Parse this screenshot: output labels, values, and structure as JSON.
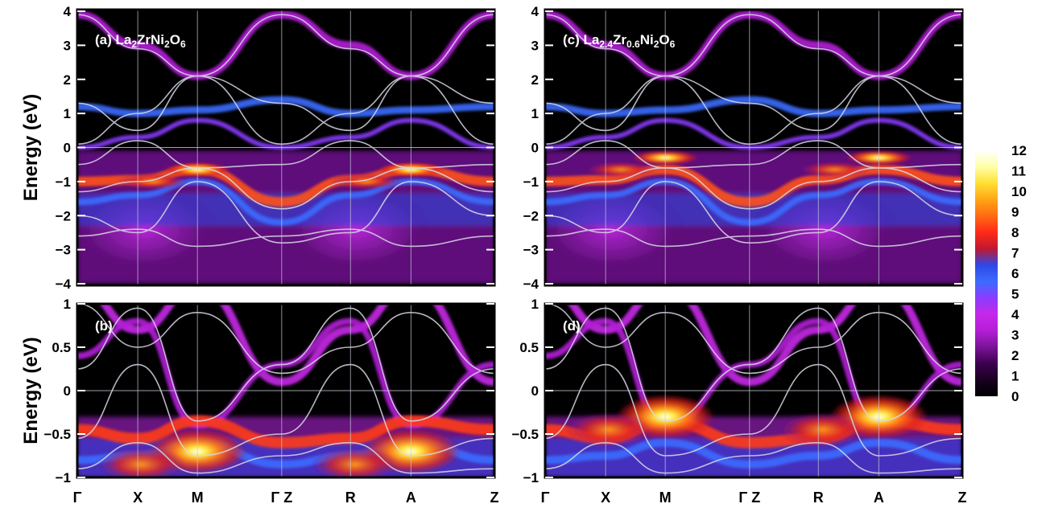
{
  "colors": {
    "background": "#ffffff",
    "axis": "#000000",
    "band_line": "#d8d8e6",
    "reference_line": "#c8c8d8",
    "panel_label": "#ffffff",
    "colormap": [
      "#000000",
      "#1a0020",
      "#3c0050",
      "#7a1497",
      "#b41ed8",
      "#c728e8",
      "#8a3cff",
      "#3c6bff",
      "#2d48e6",
      "#c01830",
      "#ff2a1a",
      "#ff6a12",
      "#ffa516",
      "#ffe034",
      "#ffffa8",
      "#ffffff"
    ]
  },
  "kpath": [
    "Γ",
    "X",
    "M",
    "Γ Z",
    "R",
    "A",
    "Z"
  ],
  "colorbar": {
    "ticks": [
      "0",
      "1",
      "2",
      "3",
      "4",
      "5",
      "6",
      "7",
      "8",
      "9",
      "10",
      "11",
      "12"
    ],
    "min": 0,
    "max": 12
  },
  "chart_data": [
    {
      "type": "heatmap",
      "panel": "a",
      "label_prefix": "(a) ",
      "label_parts": [
        [
          "La",
          ""
        ],
        [
          "2",
          "sub"
        ],
        [
          "ZrNi",
          ""
        ],
        [
          "2",
          "sub"
        ],
        [
          "O",
          ""
        ],
        [
          "6",
          "sub"
        ]
      ],
      "ylabel": "Energy (eV)",
      "ylim": [
        -4,
        4
      ],
      "yticks": [
        "4",
        "3",
        "2",
        "1",
        "0",
        "−1",
        "−2",
        "−3",
        "−4"
      ],
      "xticks": [
        "Γ",
        "X",
        "M",
        "Γ Z",
        "R",
        "A",
        "Z"
      ],
      "bright_features": [
        {
          "k": "M",
          "energy": -0.65,
          "intensity": 12
        },
        {
          "k": "A",
          "energy": -0.65,
          "intensity": 12
        },
        {
          "k": "between Γ and M",
          "energy": -1.0,
          "intensity": 8
        }
      ]
    },
    {
      "type": "heatmap",
      "panel": "b",
      "label_prefix": "(b)",
      "label_parts": [],
      "ylabel": "Energy (eV)",
      "ylim": [
        -1,
        1
      ],
      "yticks": [
        "1",
        "0.5",
        "0",
        "−0.5",
        "−1"
      ],
      "xticks": [
        "Γ",
        "X",
        "M",
        "Γ Z",
        "R",
        "A",
        "Z"
      ],
      "bright_features": [
        {
          "k": "M",
          "energy": -0.7,
          "intensity": 12
        },
        {
          "k": "A",
          "energy": -0.7,
          "intensity": 12
        }
      ]
    },
    {
      "type": "heatmap",
      "panel": "c",
      "label_prefix": "(c) ",
      "label_parts": [
        [
          "La",
          ""
        ],
        [
          "2.4",
          "sub"
        ],
        [
          "Zr",
          ""
        ],
        [
          "0.6",
          "sub"
        ],
        [
          "Ni",
          ""
        ],
        [
          "2",
          "sub"
        ],
        [
          "O",
          ""
        ],
        [
          "6",
          "sub"
        ]
      ],
      "ylabel": "",
      "ylim": [
        -4,
        4
      ],
      "yticks": [
        "4",
        "3",
        "2",
        "1",
        "0",
        "−1",
        "−2",
        "−3",
        "−4"
      ],
      "xticks": [
        "Γ",
        "X",
        "M",
        "Γ Z",
        "R",
        "A",
        "Z"
      ],
      "bright_features": [
        {
          "k": "M",
          "energy": -0.3,
          "intensity": 11
        },
        {
          "k": "A",
          "energy": -0.3,
          "intensity": 11
        }
      ]
    },
    {
      "type": "heatmap",
      "panel": "d",
      "label_prefix": "(d)",
      "label_parts": [],
      "ylabel": "",
      "ylim": [
        -1,
        1
      ],
      "yticks": [
        "1",
        "0.5",
        "0",
        "−0.5",
        "−1"
      ],
      "xticks": [
        "Γ",
        "X",
        "M",
        "Γ Z",
        "R",
        "A",
        "Z"
      ],
      "bright_features": [
        {
          "k": "M",
          "energy": -0.3,
          "intensity": 11
        },
        {
          "k": "A",
          "energy": -0.3,
          "intensity": 11
        }
      ]
    }
  ]
}
